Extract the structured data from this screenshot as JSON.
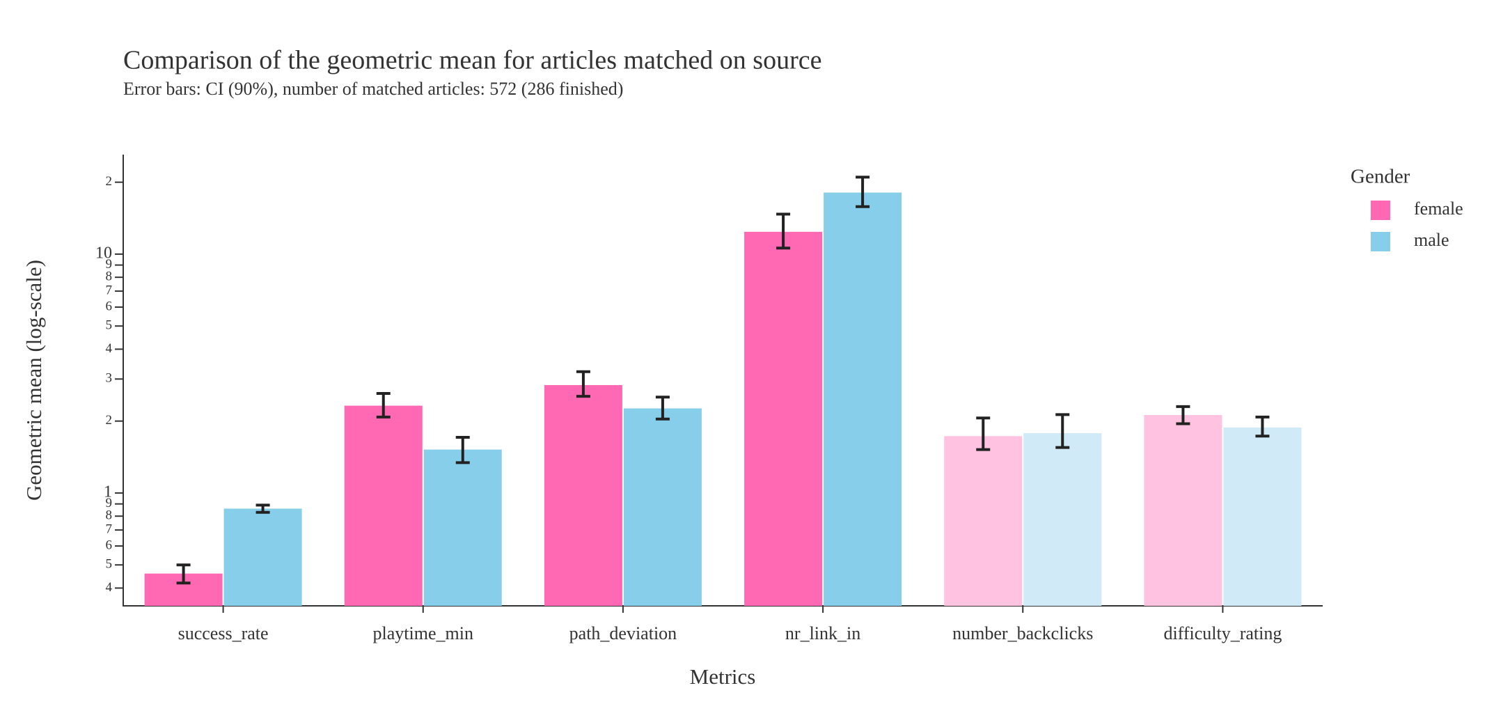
{
  "chart_data": {
    "type": "bar",
    "title": "Comparison of the geometric mean for articles matched on source",
    "subtitle": "Error bars: CI (90%), number of matched articles: 572 (286 finished)",
    "x_label": "Metrics",
    "y_label": "Geometric mean (log-scale)",
    "legend_title": "Gender",
    "legend_position": "right",
    "log_scale": true,
    "categories": [
      "success_rate",
      "playtime_min",
      "path_deviation",
      "nr_link_in",
      "number_backclicks",
      "difficulty_rating"
    ],
    "series": [
      {
        "name": "female",
        "color": "#ff69b4",
        "colors": [
          "#ff69b4",
          "#ff69b4",
          "#ff69b4",
          "#ff69b4",
          "#ffc3e1",
          "#ffc3e1"
        ],
        "values": [
          0.46,
          2.32,
          2.83,
          12.4,
          1.73,
          2.12
        ],
        "ci_low": [
          0.42,
          2.08,
          2.54,
          10.6,
          1.52,
          1.95
        ],
        "ci_high": [
          0.5,
          2.61,
          3.22,
          14.7,
          2.06,
          2.3
        ]
      },
      {
        "name": "male",
        "color": "#87ceeb",
        "colors": [
          "#87ceeb",
          "#87ceeb",
          "#87ceeb",
          "#87ceeb",
          "#d0ebf7",
          "#d0ebf7"
        ],
        "values": [
          0.86,
          1.52,
          2.26,
          18.1,
          1.78,
          1.88
        ],
        "ci_low": [
          0.83,
          1.34,
          2.04,
          15.8,
          1.55,
          1.73
        ],
        "ci_high": [
          0.89,
          1.71,
          2.52,
          21.0,
          2.13,
          2.08
        ]
      }
    ],
    "ylim": [
      0.337,
      26.1
    ],
    "yticks": [
      {
        "value": 20,
        "label": "2"
      },
      10,
      9,
      8,
      7,
      6,
      5,
      4,
      3,
      2,
      1,
      {
        "value": 0.9,
        "label": "9"
      },
      {
        "value": 0.8,
        "label": "8"
      },
      {
        "value": 0.7,
        "label": "7"
      },
      {
        "value": 0.6,
        "label": "6"
      },
      {
        "value": 0.5,
        "label": "5"
      },
      {
        "value": 0.4,
        "label": "4"
      }
    ],
    "grid": false
  }
}
